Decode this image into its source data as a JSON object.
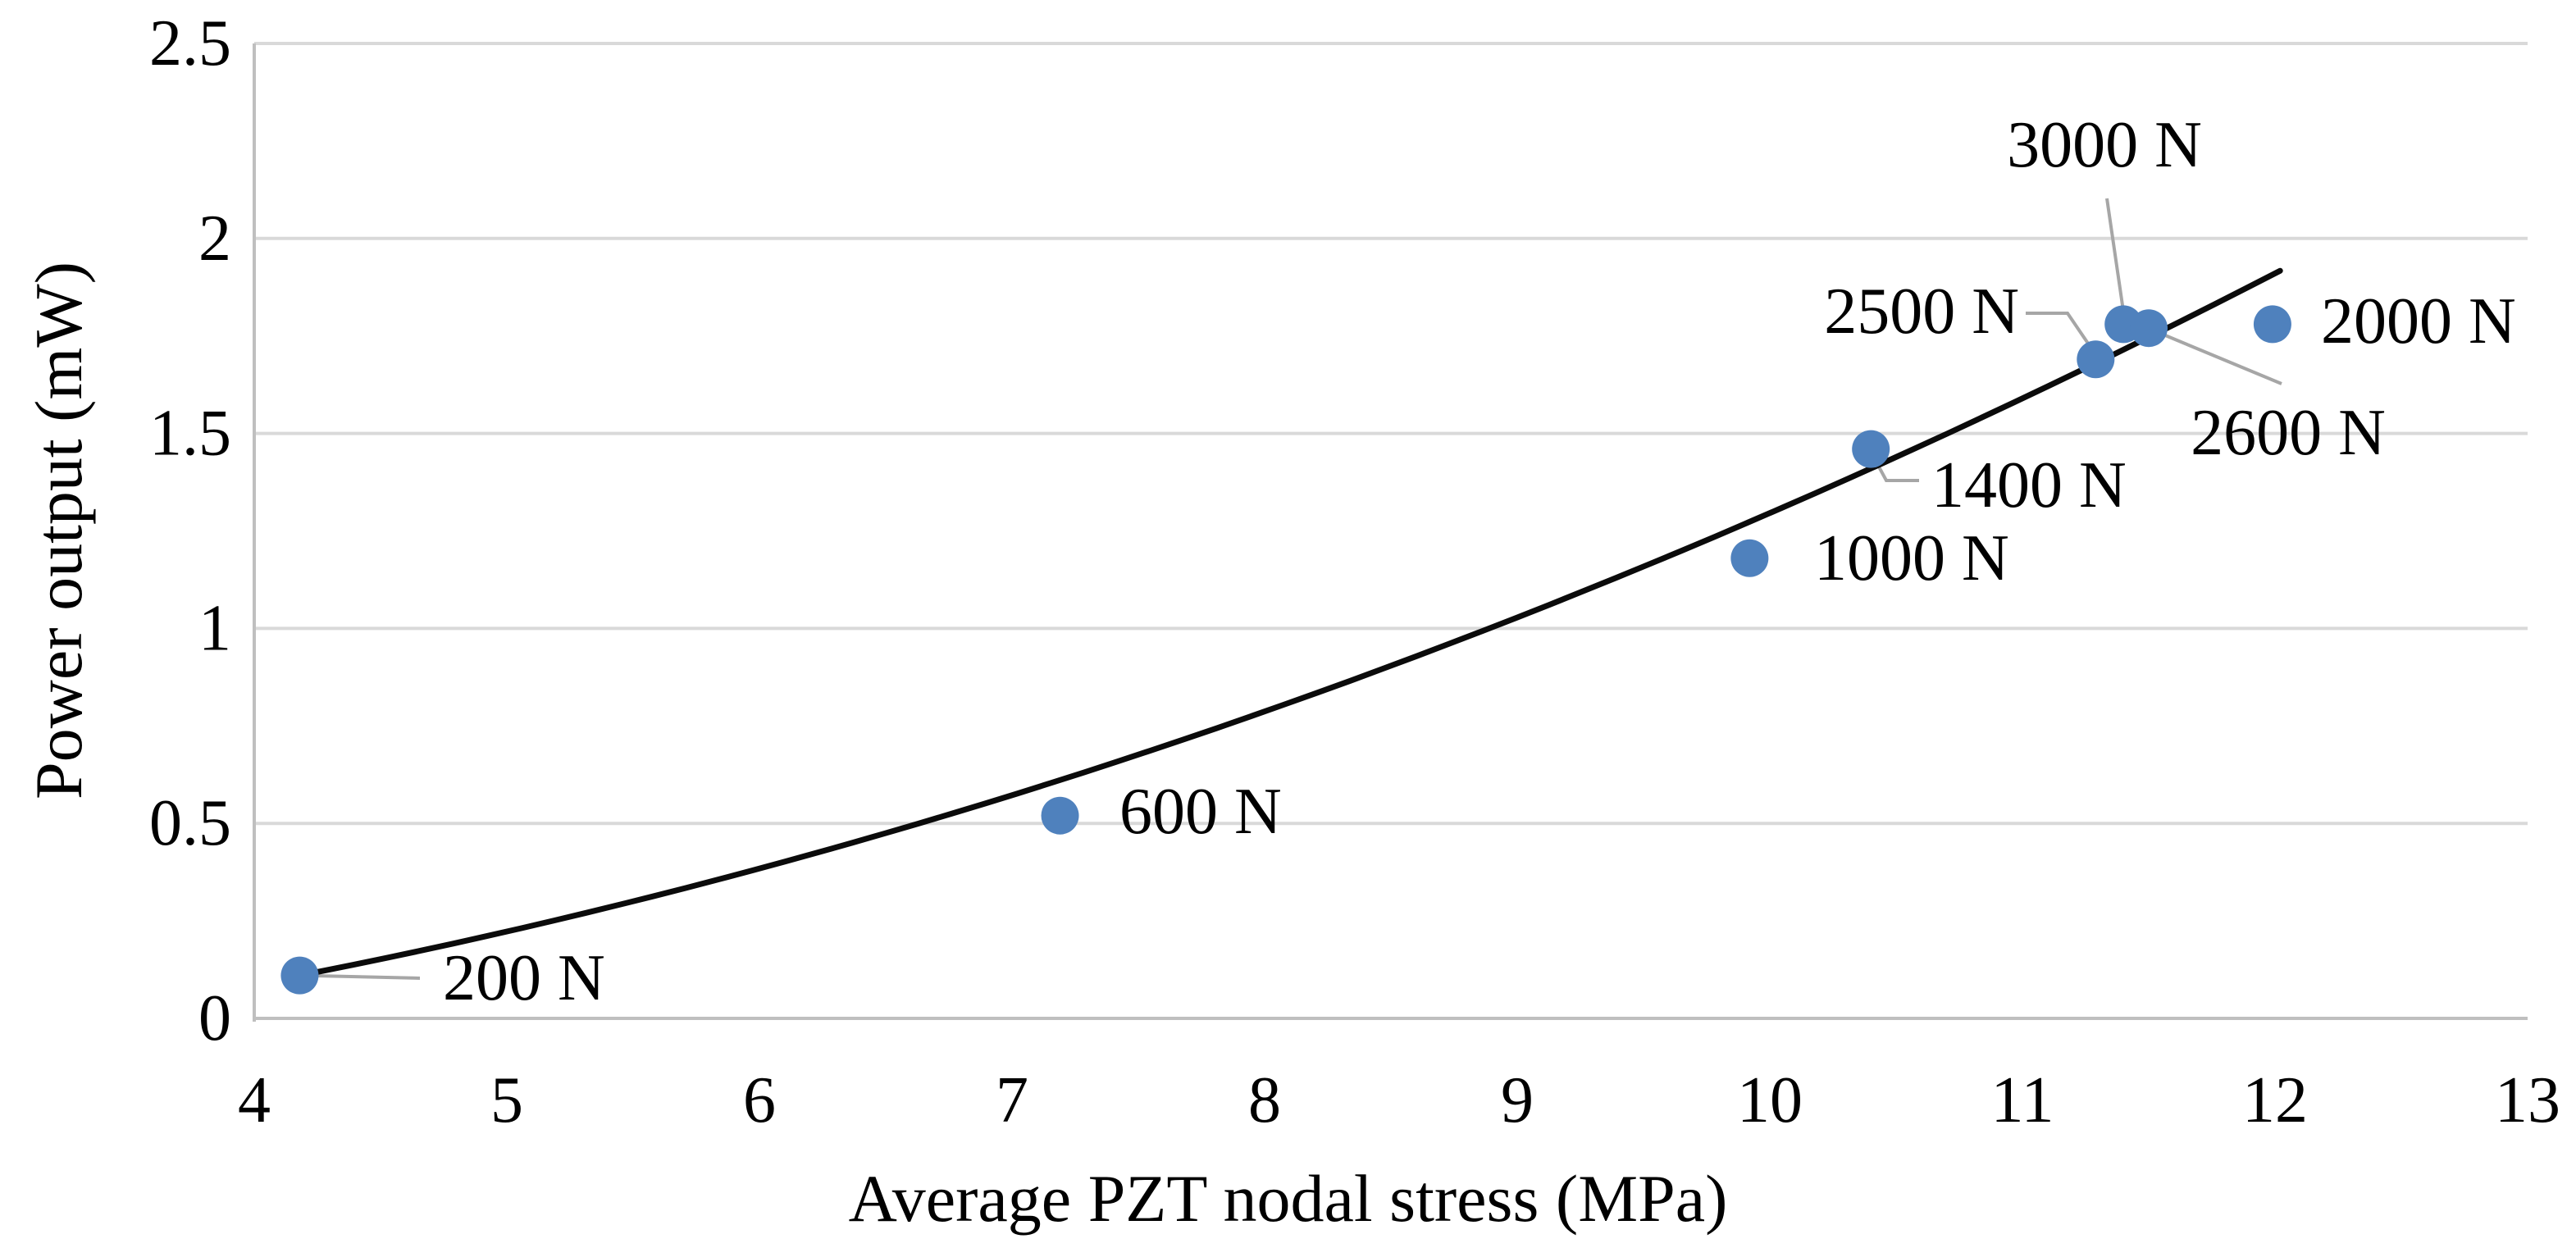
{
  "chart_data": {
    "type": "scatter",
    "title": "",
    "xlabel": "Average PZT nodal stress (MPa)",
    "ylabel": "Power output (mW)",
    "xlim": [
      4,
      13
    ],
    "ylim": [
      0,
      2.5
    ],
    "x_tick_labels": [
      "4",
      "5",
      "6",
      "7",
      "8",
      "9",
      "10",
      "11",
      "12",
      "13"
    ],
    "x_tick_values": [
      4,
      5,
      6,
      7,
      8,
      9,
      10,
      11,
      12,
      13
    ],
    "y_tick_labels": [
      "0",
      "0.5",
      "1",
      "1.5",
      "2",
      "2.5"
    ],
    "y_tick_values": [
      0,
      0.5,
      1,
      1.5,
      2,
      2.5
    ],
    "grid": "horizontal",
    "legend": "none",
    "points": [
      {
        "label": "200 N",
        "x": 4.18,
        "y": 0.11
      },
      {
        "label": "600 N",
        "x": 7.19,
        "y": 0.52
      },
      {
        "label": "1000 N",
        "x": 9.92,
        "y": 1.18
      },
      {
        "label": "1400 N",
        "x": 10.4,
        "y": 1.46
      },
      {
        "label": "2500 N",
        "x": 11.29,
        "y": 1.69
      },
      {
        "label": "3000 N",
        "x": 11.4,
        "y": 1.78
      },
      {
        "label": "2600 N",
        "x": 11.5,
        "y": 1.77
      },
      {
        "label": "2000 N",
        "x": 11.99,
        "y": 1.78
      }
    ],
    "trendline": {
      "type": "quadratic",
      "a": 0.013253,
      "b": 0.0158,
      "c": -0.1876,
      "x_start": 4.13,
      "x_end": 12.02
    },
    "colors": {
      "marker": "#4f81bd",
      "trendline": "#0b0b0b",
      "gridline": "#d9d9d9",
      "axis_line": "#bfbfbf",
      "leader": "#a6a6a6",
      "text": "#000000"
    }
  }
}
